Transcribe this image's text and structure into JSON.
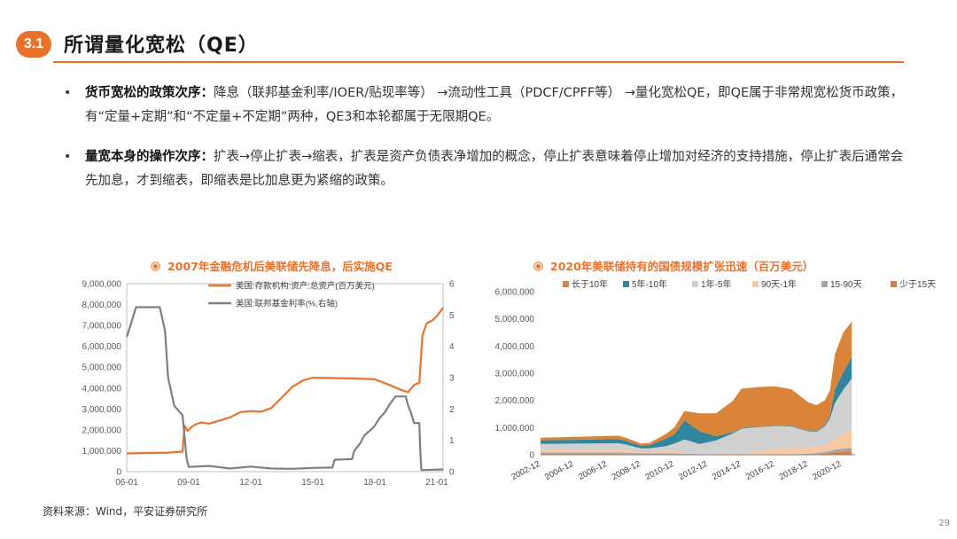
{
  "header": {
    "section_number": "3.1",
    "title": "所谓量化宽松（QE）"
  },
  "bullets": [
    {
      "label": "货币宽松的政策次序：",
      "text": "降息（联邦基金利率/IOER/贴现率等） →流动性工具（PDCF/CPFF等） →量化宽松QE，即QE属于非常规宽松货币政策，有“定量+定期”和“不定量+不定期”两种，QE3和本轮都属于无限期QE。"
    },
    {
      "label": "量宽本身的操作次序：",
      "text": "扩表→停止扩表→缩表，扩表是资产负债表净增加的概念，停止扩表意味着停止增加对经济的支持措施，停止扩表后通常会先加息，才到缩表，即缩表是比加息更为紧缩的政策。"
    }
  ],
  "chart_data": [
    {
      "type": "line",
      "title": "2007年金融危机后美联储先降息，后实施QE",
      "x_ticks": [
        "06-01",
        "09-01",
        "12-01",
        "15-01",
        "18-01",
        "21-01"
      ],
      "y_ticks_left": [
        "0",
        "1,000,000",
        "2,000,000",
        "3,000,000",
        "4,000,000",
        "5,000,000",
        "6,000,000",
        "7,000,000",
        "8,000,000",
        "9,000,000"
      ],
      "y_ticks_right": [
        "0",
        "1",
        "2",
        "3",
        "4",
        "5",
        "6"
      ],
      "ylim_left": [
        0,
        9000000
      ],
      "ylim_right": [
        0,
        6
      ],
      "xlim": [
        2006.0,
        2021.3
      ],
      "series": [
        {
          "name": "美国:存款机构:资产:总资产(百万美元)",
          "axis": "left",
          "color": "#e8712c",
          "points": [
            [
              2006.0,
              870000
            ],
            [
              2007.0,
              890000
            ],
            [
              2008.0,
              910000
            ],
            [
              2008.7,
              960000
            ],
            [
              2008.8,
              2200000
            ],
            [
              2008.95,
              1950000
            ],
            [
              2009.1,
              2100000
            ],
            [
              2009.3,
              2250000
            ],
            [
              2009.6,
              2350000
            ],
            [
              2010.0,
              2300000
            ],
            [
              2010.5,
              2450000
            ],
            [
              2011.0,
              2600000
            ],
            [
              2011.5,
              2850000
            ],
            [
              2012.0,
              2900000
            ],
            [
              2012.5,
              2870000
            ],
            [
              2013.0,
              3050000
            ],
            [
              2013.5,
              3550000
            ],
            [
              2014.0,
              4050000
            ],
            [
              2014.5,
              4350000
            ],
            [
              2015.0,
              4500000
            ],
            [
              2016.0,
              4480000
            ],
            [
              2017.0,
              4460000
            ],
            [
              2018.0,
              4420000
            ],
            [
              2018.7,
              4150000
            ],
            [
              2019.3,
              3900000
            ],
            [
              2019.6,
              3800000
            ],
            [
              2019.9,
              4150000
            ],
            [
              2020.15,
              4250000
            ],
            [
              2020.3,
              6500000
            ],
            [
              2020.5,
              7100000
            ],
            [
              2020.8,
              7250000
            ],
            [
              2021.0,
              7450000
            ],
            [
              2021.3,
              7850000
            ]
          ]
        },
        {
          "name": "美国:联邦基金利率(%,右轴)",
          "axis": "right",
          "color": "#7f7f7f",
          "points": [
            [
              2006.0,
              4.3
            ],
            [
              2006.15,
              4.6
            ],
            [
              2006.45,
              5.25
            ],
            [
              2007.6,
              5.25
            ],
            [
              2007.85,
              4.5
            ],
            [
              2008.0,
              3.0
            ],
            [
              2008.3,
              2.1
            ],
            [
              2008.7,
              1.8
            ],
            [
              2008.9,
              0.4
            ],
            [
              2009.0,
              0.15
            ],
            [
              2010.0,
              0.18
            ],
            [
              2011.0,
              0.1
            ],
            [
              2012.0,
              0.16
            ],
            [
              2013.0,
              0.1
            ],
            [
              2014.0,
              0.09
            ],
            [
              2015.0,
              0.12
            ],
            [
              2015.95,
              0.13
            ],
            [
              2016.05,
              0.38
            ],
            [
              2016.9,
              0.4
            ],
            [
              2017.0,
              0.66
            ],
            [
              2017.3,
              0.91
            ],
            [
              2017.5,
              1.16
            ],
            [
              2017.95,
              1.42
            ],
            [
              2018.2,
              1.68
            ],
            [
              2018.5,
              1.91
            ],
            [
              2018.75,
              2.18
            ],
            [
              2019.0,
              2.4
            ],
            [
              2019.5,
              2.4
            ],
            [
              2019.6,
              2.13
            ],
            [
              2019.75,
              1.88
            ],
            [
              2019.9,
              1.55
            ],
            [
              2020.15,
              1.55
            ],
            [
              2020.2,
              0.65
            ],
            [
              2020.25,
              0.05
            ],
            [
              2021.3,
              0.07
            ]
          ]
        }
      ]
    },
    {
      "type": "area",
      "title": "2020年美联储持有的国债规模扩张迅速（百万美元）",
      "x_ticks": [
        "2002-12",
        "2004-12",
        "2006-12",
        "2008-12",
        "2010-12",
        "2012-12",
        "2014-12",
        "2016-12",
        "2018-12",
        "2020-12"
      ],
      "y_ticks": [
        "0",
        "1,000,000",
        "2,000,000",
        "3,000,000",
        "4,000,000",
        "5,000,000",
        "6,000,000"
      ],
      "ylim": [
        0,
        6000000
      ],
      "xlim": [
        2002.9,
        2021.7
      ],
      "x": [
        2002.9,
        2004.9,
        2006.9,
        2007.6,
        2008.0,
        2008.9,
        2009.4,
        2010.4,
        2010.9,
        2011.5,
        2012.4,
        2013.4,
        2014.4,
        2014.9,
        2015.9,
        2016.9,
        2017.9,
        2018.4,
        2018.9,
        2019.4,
        2019.9,
        2020.2,
        2020.5,
        2021.0,
        2021.5
      ],
      "series": [
        {
          "name": "少于15天",
          "color": "#e07a3c",
          "values": [
            30000,
            30000,
            30000,
            30000,
            25000,
            15000,
            15000,
            15000,
            20000,
            20000,
            15000,
            15000,
            15000,
            15000,
            15000,
            15000,
            15000,
            15000,
            20000,
            25000,
            40000,
            60000,
            90000,
            110000,
            120000
          ]
        },
        {
          "name": "15-90天",
          "color": "#a6a6a6",
          "values": [
            60000,
            60000,
            60000,
            60000,
            50000,
            40000,
            40000,
            40000,
            30000,
            20000,
            10000,
            5000,
            5000,
            5000,
            5000,
            5000,
            5000,
            5000,
            20000,
            40000,
            60000,
            80000,
            100000,
            120000,
            130000
          ]
        },
        {
          "name": "90天-1年",
          "color": "#f7c8a1",
          "values": [
            110000,
            110000,
            110000,
            110000,
            90000,
            60000,
            60000,
            60000,
            60000,
            40000,
            20000,
            10000,
            20000,
            40000,
            100000,
            180000,
            220000,
            230000,
            220000,
            230000,
            260000,
            300000,
            420000,
            520000,
            650000
          ]
        },
        {
          "name": "1年-5年",
          "color": "#d0d0d0",
          "values": [
            200000,
            210000,
            220000,
            225000,
            210000,
            120000,
            120000,
            200000,
            300000,
            480000,
            350000,
            500000,
            750000,
            900000,
            900000,
            850000,
            800000,
            700000,
            600000,
            550000,
            700000,
            900000,
            1300000,
            1650000,
            1900000
          ]
        },
        {
          "name": "5年-10年",
          "color": "#31859c",
          "values": [
            130000,
            140000,
            150000,
            150000,
            140000,
            100000,
            110000,
            280000,
            350000,
            700000,
            480000,
            150000,
            50000,
            20000,
            20000,
            20000,
            20000,
            20000,
            20000,
            30000,
            50000,
            100000,
            500000,
            650000,
            800000
          ]
        },
        {
          "name": "长于10年",
          "color": "#d98439",
          "values": [
            100000,
            110000,
            120000,
            125000,
            110000,
            80000,
            90000,
            170000,
            250000,
            350000,
            650000,
            850000,
            1150000,
            1450000,
            1450000,
            1450000,
            1350000,
            1200000,
            1050000,
            950000,
            900000,
            950000,
            1300000,
            1450000,
            1300000
          ]
        }
      ]
    }
  ],
  "source": "资料来源：Wind，平安证券研究所",
  "page_number": "29"
}
